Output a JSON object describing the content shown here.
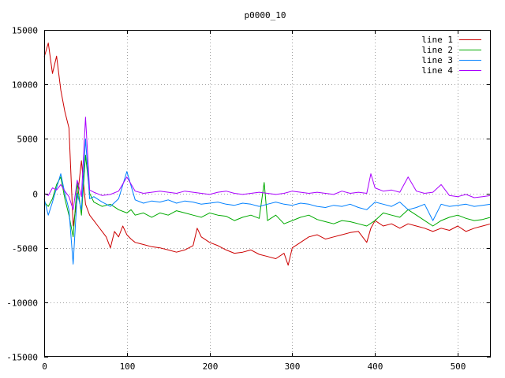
{
  "chart_data": {
    "type": "line",
    "title": "p0000_10",
    "xlabel": "",
    "ylabel": "",
    "xlim": [
      0,
      540
    ],
    "ylim": [
      -15000,
      15000
    ],
    "xticks": [
      0,
      100,
      200,
      300,
      400,
      500
    ],
    "yticks": [
      -15000,
      -10000,
      -5000,
      0,
      5000,
      10000,
      15000
    ],
    "grid": true,
    "legend_position": "top-right",
    "series": [
      {
        "name": "line 1",
        "color": "#cc0000",
        "x": [
          0,
          5,
          10,
          15,
          20,
          25,
          30,
          35,
          40,
          45,
          50,
          55,
          60,
          65,
          70,
          75,
          80,
          85,
          90,
          95,
          100,
          105,
          110,
          115,
          120,
          130,
          140,
          150,
          160,
          170,
          180,
          185,
          190,
          200,
          210,
          220,
          230,
          240,
          250,
          260,
          270,
          280,
          290,
          295,
          300,
          310,
          320,
          330,
          340,
          350,
          360,
          370,
          380,
          390,
          395,
          400,
          410,
          420,
          430,
          440,
          450,
          460,
          470,
          480,
          490,
          500,
          510,
          520,
          530,
          540
        ],
        "y": [
          12500,
          13800,
          11000,
          12600,
          9500,
          7500,
          6000,
          -3000,
          -500,
          3000,
          -1000,
          -2000,
          -2500,
          -3000,
          -3500,
          -4000,
          -5000,
          -3500,
          -4000,
          -3000,
          -3800,
          -4200,
          -4500,
          -4600,
          -4700,
          -4900,
          -5000,
          -5200,
          -5400,
          -5200,
          -4800,
          -3200,
          -4000,
          -4500,
          -4800,
          -5200,
          -5500,
          -5400,
          -5200,
          -5600,
          -5800,
          -6000,
          -5500,
          -6600,
          -5000,
          -4500,
          -4000,
          -3800,
          -4200,
          -4000,
          -3800,
          -3600,
          -3500,
          -4500,
          -3200,
          -2500,
          -3000,
          -2800,
          -3200,
          -2800,
          -3000,
          -3200,
          -3500,
          -3200,
          -3400,
          -3000,
          -3500,
          -3200,
          -3000,
          -2800
        ]
      },
      {
        "name": "line 2",
        "color": "#00aa00",
        "x": [
          0,
          5,
          10,
          15,
          20,
          25,
          30,
          35,
          40,
          45,
          50,
          55,
          60,
          70,
          80,
          90,
          100,
          105,
          110,
          120,
          130,
          140,
          150,
          160,
          170,
          180,
          190,
          200,
          210,
          220,
          230,
          240,
          250,
          260,
          266,
          270,
          280,
          290,
          300,
          310,
          320,
          330,
          340,
          350,
          360,
          370,
          380,
          390,
          400,
          410,
          420,
          430,
          440,
          450,
          460,
          470,
          480,
          490,
          500,
          510,
          520,
          530,
          540
        ],
        "y": [
          -800,
          -1200,
          -500,
          800,
          1500,
          -500,
          -2000,
          -4000,
          1000,
          -2000,
          3500,
          0,
          -800,
          -1200,
          -1000,
          -1500,
          -1800,
          -1500,
          -2000,
          -1800,
          -2200,
          -1800,
          -2000,
          -1600,
          -1800,
          -2000,
          -2200,
          -1800,
          -2000,
          -2100,
          -2500,
          -2200,
          -2000,
          -2300,
          1000,
          -2500,
          -2000,
          -2800,
          -2500,
          -2200,
          -2000,
          -2400,
          -2600,
          -2800,
          -2500,
          -2600,
          -2800,
          -3000,
          -2500,
          -1800,
          -2000,
          -2200,
          -1500,
          -2000,
          -2500,
          -3000,
          -2500,
          -2200,
          -2000,
          -2300,
          -2500,
          -2400,
          -2200
        ]
      },
      {
        "name": "line 3",
        "color": "#0080ff",
        "x": [
          0,
          5,
          10,
          15,
          20,
          25,
          30,
          35,
          40,
          45,
          50,
          55,
          60,
          70,
          80,
          90,
          100,
          110,
          120,
          130,
          140,
          150,
          160,
          170,
          180,
          190,
          200,
          210,
          220,
          230,
          240,
          250,
          260,
          270,
          280,
          290,
          300,
          310,
          320,
          330,
          340,
          350,
          360,
          370,
          380,
          390,
          400,
          410,
          420,
          430,
          440,
          450,
          460,
          470,
          480,
          490,
          500,
          510,
          520,
          530,
          540
        ],
        "y": [
          -500,
          -2000,
          -800,
          500,
          1800,
          0,
          -1500,
          -6500,
          0,
          -1500,
          5000,
          -500,
          -300,
          -800,
          -1200,
          -500,
          2000,
          -600,
          -900,
          -700,
          -800,
          -600,
          -900,
          -700,
          -800,
          -1000,
          -900,
          -800,
          -1000,
          -1100,
          -900,
          -1000,
          -1200,
          -1000,
          -800,
          -1000,
          -1100,
          -900,
          -1000,
          -1200,
          -1300,
          -1100,
          -1200,
          -1000,
          -1300,
          -1500,
          -800,
          -1000,
          -1200,
          -800,
          -1500,
          -1300,
          -1000,
          -2500,
          -1000,
          -1200,
          -1100,
          -1000,
          -1200,
          -1100,
          -1000
        ]
      },
      {
        "name": "line 4",
        "color": "#aa00ff",
        "x": [
          0,
          5,
          10,
          15,
          20,
          25,
          30,
          35,
          40,
          45,
          50,
          55,
          60,
          70,
          80,
          90,
          100,
          110,
          120,
          130,
          140,
          150,
          160,
          170,
          180,
          190,
          200,
          210,
          220,
          230,
          240,
          250,
          260,
          270,
          280,
          290,
          300,
          310,
          320,
          330,
          340,
          350,
          360,
          370,
          380,
          390,
          395,
          400,
          410,
          420,
          430,
          440,
          450,
          460,
          470,
          480,
          490,
          500,
          510,
          520,
          530,
          540
        ],
        "y": [
          0,
          -200,
          500,
          300,
          800,
          200,
          -300,
          -1500,
          1200,
          -300,
          7000,
          300,
          100,
          -200,
          -100,
          200,
          1500,
          200,
          0,
          100,
          200,
          100,
          0,
          200,
          100,
          0,
          -100,
          100,
          200,
          0,
          -100,
          0,
          100,
          0,
          -100,
          0,
          200,
          100,
          0,
          100,
          0,
          -100,
          200,
          0,
          100,
          0,
          1800,
          500,
          200,
          300,
          100,
          1500,
          200,
          0,
          100,
          800,
          -200,
          -300,
          -100,
          -400,
          -300,
          -200
        ]
      }
    ]
  }
}
